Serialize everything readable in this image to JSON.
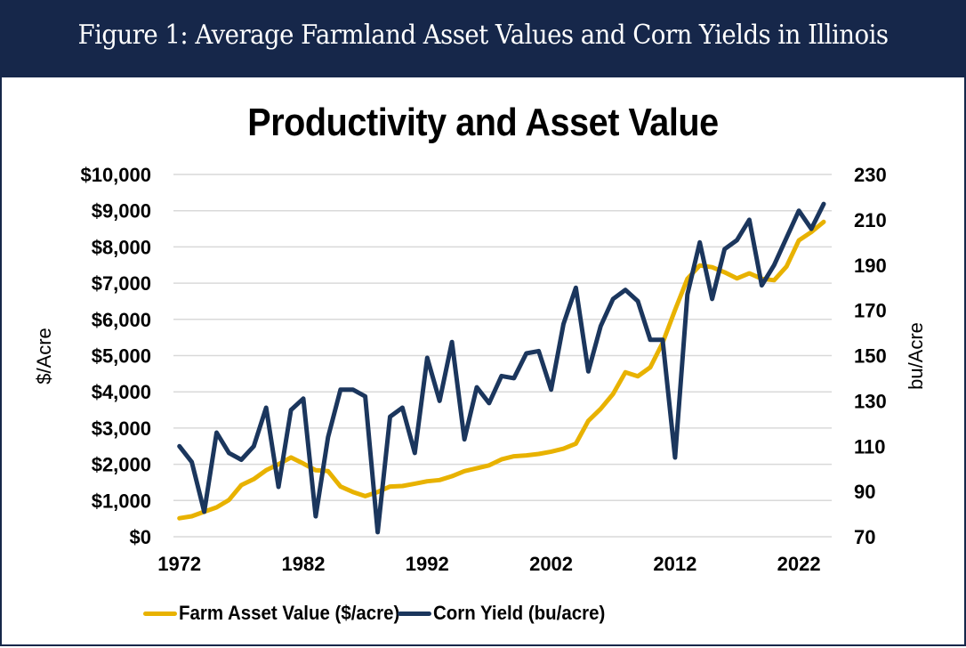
{
  "header": {
    "title": "Figure 1: Average Farmland Asset Values and Corn Yields in Illinois"
  },
  "colors": {
    "header_bg": "#16274a",
    "asset": "#e8b200",
    "corn": "#1b365d",
    "grid": "#d9d9d9"
  },
  "chart_data": {
    "type": "line",
    "title": "Productivity and Asset Value",
    "xlabel": "",
    "ylabel": "$/Acre",
    "y2label": "bu/Acre",
    "x": [
      1972,
      1973,
      1974,
      1975,
      1976,
      1977,
      1978,
      1979,
      1980,
      1981,
      1982,
      1983,
      1984,
      1985,
      1986,
      1987,
      1988,
      1989,
      1990,
      1991,
      1992,
      1993,
      1994,
      1995,
      1996,
      1997,
      1998,
      1999,
      2000,
      2001,
      2002,
      2003,
      2004,
      2005,
      2006,
      2007,
      2008,
      2009,
      2010,
      2011,
      2012,
      2013,
      2014,
      2015,
      2016,
      2017,
      2018,
      2019,
      2020,
      2021,
      2022,
      2023,
      2024
    ],
    "xlim": [
      1972,
      2024
    ],
    "x_ticks": [
      "1972",
      "1982",
      "1992",
      "2002",
      "2012",
      "2022"
    ],
    "ylim": [
      0,
      10000
    ],
    "y_ticks": [
      "$0",
      "$1,000",
      "$2,000",
      "$3,000",
      "$4,000",
      "$5,000",
      "$6,000",
      "$7,000",
      "$8,000",
      "$9,000",
      "$10,000"
    ],
    "y2lim": [
      70,
      230
    ],
    "y2_ticks": [
      "70",
      "90",
      "110",
      "130",
      "150",
      "170",
      "190",
      "210",
      "230"
    ],
    "grid": true,
    "legend_position": "bottom",
    "series": [
      {
        "name": "Farm Asset Value ($/acre)",
        "axis": "left",
        "color": "#e8b200",
        "values": [
          510,
          565,
          690,
          810,
          1015,
          1425,
          1590,
          1835,
          2000,
          2190,
          2020,
          1835,
          1810,
          1385,
          1235,
          1120,
          1235,
          1385,
          1400,
          1465,
          1530,
          1565,
          1670,
          1810,
          1890,
          1970,
          2135,
          2220,
          2245,
          2285,
          2350,
          2430,
          2570,
          3200,
          3530,
          3940,
          4540,
          4430,
          4675,
          5350,
          6260,
          7120,
          7490,
          7440,
          7300,
          7130,
          7270,
          7120,
          7080,
          7460,
          8180,
          8410,
          8690
        ]
      },
      {
        "name": "Corn Yield (bu/acre)",
        "axis": "right",
        "color": "#1b365d",
        "values": [
          110,
          103,
          81,
          116,
          107,
          104,
          110,
          127,
          92,
          126,
          131,
          79,
          114,
          135,
          135,
          132,
          72,
          123,
          127,
          107,
          149,
          130,
          156,
          113,
          136,
          129,
          141,
          140,
          151,
          152,
          135,
          164,
          180,
          143,
          163,
          175,
          179,
          174,
          157,
          157,
          105,
          177,
          200,
          175,
          197,
          201,
          210,
          181,
          190,
          202,
          214,
          206,
          217
        ]
      }
    ]
  }
}
